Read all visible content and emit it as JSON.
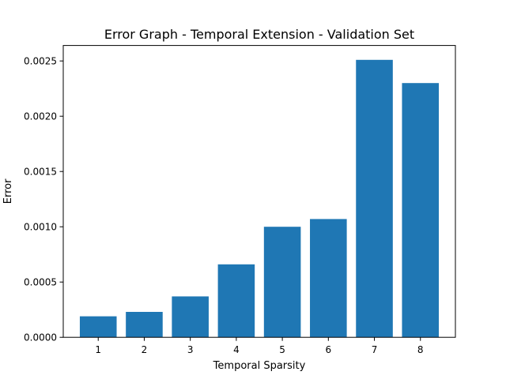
{
  "chart_data": {
    "type": "bar",
    "title": "Error Graph - Temporal Extension - Validation Set",
    "xlabel": "Temporal Sparsity",
    "ylabel": "Error",
    "categories": [
      "1",
      "2",
      "3",
      "4",
      "5",
      "6",
      "7",
      "8"
    ],
    "values": [
      0.00019,
      0.00023,
      0.00037,
      0.00066,
      0.001,
      0.00107,
      0.00251,
      0.0023
    ],
    "ylim": [
      0,
      0.00264
    ],
    "yticks": [
      "0.0000",
      "0.0005",
      "0.0010",
      "0.0015",
      "0.0020",
      "0.0025"
    ],
    "ytick_values": [
      0,
      0.0005,
      0.001,
      0.0015,
      0.002,
      0.0025
    ],
    "grid": false,
    "legend": "none",
    "bar_color": "#1f77b4"
  }
}
